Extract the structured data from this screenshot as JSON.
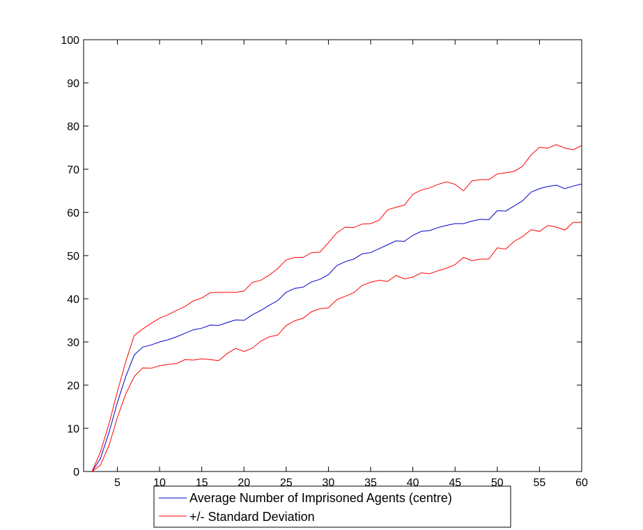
{
  "chart_data": {
    "type": "line",
    "title": "",
    "xlabel": "",
    "ylabel": "",
    "xlim": [
      1,
      60
    ],
    "ylim": [
      0,
      100
    ],
    "xticks": [
      5,
      10,
      15,
      20,
      25,
      30,
      35,
      40,
      45,
      50,
      55,
      60
    ],
    "yticks": [
      0,
      10,
      20,
      30,
      40,
      50,
      60,
      70,
      80,
      90,
      100
    ],
    "grid": false,
    "legend_position": "below-plot",
    "colors": {
      "mean": "#0000cc",
      "std": "#ff0000"
    },
    "x": [
      2,
      3,
      4,
      5,
      6,
      7,
      8,
      9,
      10,
      11,
      12,
      13,
      14,
      15,
      16,
      17,
      18,
      19,
      20,
      21,
      22,
      23,
      24,
      25,
      26,
      27,
      28,
      29,
      30,
      31,
      32,
      33,
      34,
      35,
      36,
      37,
      38,
      39,
      40,
      41,
      42,
      43,
      44,
      45,
      46,
      47,
      48,
      49,
      50,
      51,
      52,
      53,
      54,
      55,
      56,
      57,
      58,
      59,
      60
    ],
    "series": [
      {
        "name": "Average Number of Imprisoned Agents (centre)",
        "color": "#0000cc",
        "values": [
          0,
          3,
          9,
          16,
          22,
          27,
          28.8,
          29.3,
          30,
          30.5,
          31.2,
          32,
          32.8,
          33.2,
          33.9,
          33.8,
          34.5,
          35.1,
          35,
          36.3,
          37.3,
          38.5,
          39.6,
          41.5,
          42.4,
          42.7,
          43.9,
          44.5,
          45.6,
          47.7,
          48.6,
          49.2,
          50.4,
          50.7,
          51.6,
          52.5,
          53.4,
          53.3,
          54.7,
          55.6,
          55.8,
          56.5,
          57,
          57.4,
          57.4,
          58,
          58.4,
          58.3,
          60.4,
          60.3,
          61.5,
          62.7,
          64.7,
          65.5,
          66,
          66.3,
          65.5,
          66.1,
          66.6
        ]
      },
      {
        "name": "+/- Standard Deviation",
        "color": "#ff0000",
        "values": [
          0,
          4.5,
          11,
          18.5,
          25.5,
          31.5,
          33,
          34.3,
          35.5,
          36.3,
          37.3,
          38.2,
          39.5,
          40.2,
          41.4,
          41.5,
          41.5,
          41.5,
          41.8,
          43.8,
          44.3,
          45.5,
          47,
          49,
          49.6,
          49.6,
          50.7,
          50.8,
          53,
          55.3,
          56.6,
          56.5,
          57.3,
          57.4,
          58.2,
          60.6,
          61.2,
          61.7,
          64.2,
          65.2,
          65.7,
          66.5,
          67.1,
          66.5,
          65,
          67.3,
          67.6,
          67.6,
          68.9,
          69.2,
          69.5,
          70.7,
          73.3,
          75.1,
          74.9,
          75.7,
          74.9,
          74.5,
          75.5
        ]
      },
      {
        "name": "",
        "color": "#ff0000",
        "values": [
          0,
          1.5,
          6,
          12.5,
          18,
          22,
          24,
          23.9,
          24.5,
          24.8,
          25,
          25.9,
          25.8,
          26.1,
          25.9,
          25.7,
          27.3,
          28.5,
          27.8,
          28.6,
          30.2,
          31.2,
          31.6,
          33.8,
          34.9,
          35.5,
          37,
          37.7,
          37.9,
          39.8,
          40.6,
          41.4,
          43.1,
          43.8,
          44.3,
          44,
          45.4,
          44.6,
          45,
          46,
          45.8,
          46.5,
          47.1,
          47.9,
          49.6,
          48.8,
          49.2,
          49.2,
          51.8,
          51.5,
          53.3,
          54.4,
          56,
          55.6,
          57,
          56.6,
          55.9,
          57.7,
          57.7
        ]
      }
    ],
    "legend": [
      {
        "label": "Average Number of Imprisoned Agents (centre)",
        "color": "#0000cc"
      },
      {
        "label": "+/- Standard Deviation",
        "color": "#ff0000"
      }
    ]
  }
}
